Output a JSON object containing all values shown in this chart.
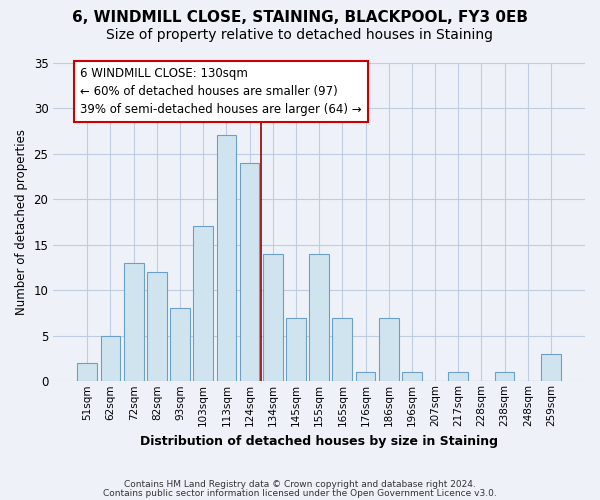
{
  "title": "6, WINDMILL CLOSE, STAINING, BLACKPOOL, FY3 0EB",
  "subtitle": "Size of property relative to detached houses in Staining",
  "xlabel": "Distribution of detached houses by size in Staining",
  "ylabel": "Number of detached properties",
  "bar_labels": [
    "51sqm",
    "62sqm",
    "72sqm",
    "82sqm",
    "93sqm",
    "103sqm",
    "113sqm",
    "124sqm",
    "134sqm",
    "145sqm",
    "155sqm",
    "165sqm",
    "176sqm",
    "186sqm",
    "196sqm",
    "207sqm",
    "217sqm",
    "228sqm",
    "238sqm",
    "248sqm",
    "259sqm"
  ],
  "bar_values": [
    2,
    5,
    13,
    12,
    8,
    17,
    27,
    24,
    14,
    7,
    14,
    7,
    1,
    7,
    1,
    0,
    1,
    0,
    1,
    0,
    3
  ],
  "bar_color": "#d0e4f0",
  "bar_edge_color": "#6aa0c8",
  "vline_x_index": 7.5,
  "vline_color": "#990000",
  "annotation_line1": "6 WINDMILL CLOSE: 130sqm",
  "annotation_line2": "← 60% of detached houses are smaller (97)",
  "annotation_line3": "39% of semi-detached houses are larger (64) →",
  "annotation_box_color": "#ffffff",
  "annotation_box_edge_color": "#cc0000",
  "ylim": [
    0,
    35
  ],
  "yticks": [
    0,
    5,
    10,
    15,
    20,
    25,
    30,
    35
  ],
  "footnote1": "Contains HM Land Registry data © Crown copyright and database right 2024.",
  "footnote2": "Contains public sector information licensed under the Open Government Licence v3.0.",
  "background_color": "#eef2f8",
  "plot_background_color": "#eef2f8",
  "grid_color": "#c0cce0",
  "title_fontsize": 11,
  "subtitle_fontsize": 10,
  "bar_width": 0.85
}
